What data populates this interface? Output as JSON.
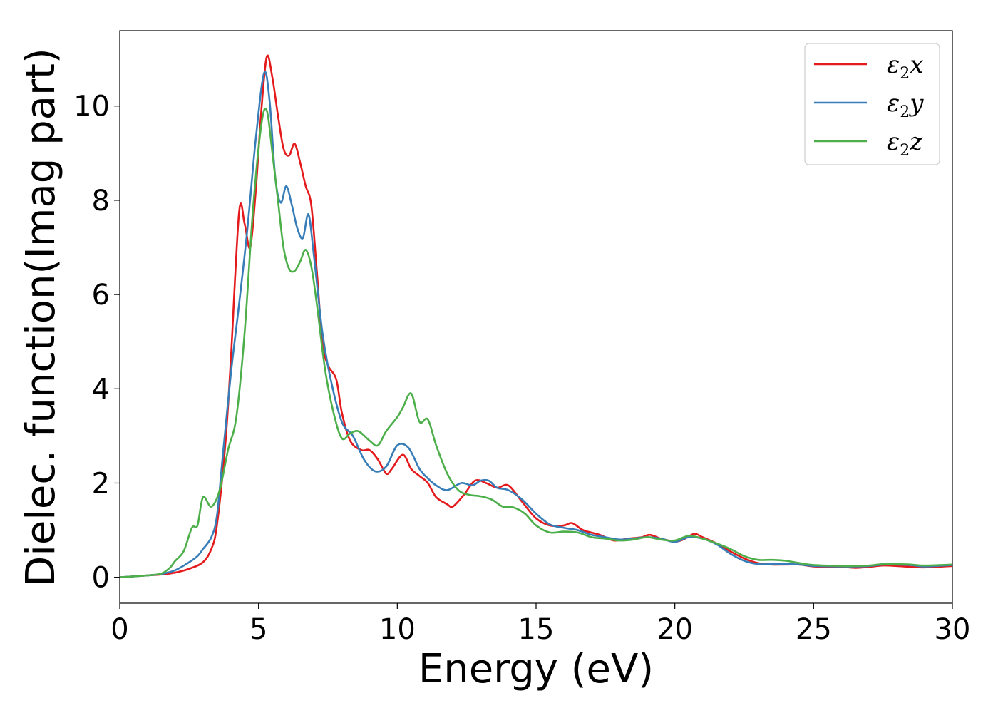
{
  "chart_data": {
    "type": "line",
    "title": "",
    "xlabel": "Energy (eV)",
    "ylabel": "Dielec. function(Imag part)",
    "xlim": [
      0,
      30
    ],
    "ylim": [
      -0.55,
      11.6
    ],
    "xticks": [
      "0",
      "5",
      "10",
      "15",
      "20",
      "25",
      "30"
    ],
    "yticks": [
      "0",
      "2",
      "4",
      "6",
      "8",
      "10"
    ],
    "grid": false,
    "legend_position": "top-right",
    "series": [
      {
        "name": "ε₂x",
        "legend_base": "ε",
        "legend_sub": "2",
        "legend_suffix": "x",
        "color": "#e41a1c",
        "points": [
          [
            0,
            0
          ],
          [
            1,
            0.04
          ],
          [
            1.5,
            0.06
          ],
          [
            2,
            0.1
          ],
          [
            2.5,
            0.18
          ],
          [
            3,
            0.32
          ],
          [
            3.3,
            0.6
          ],
          [
            3.5,
            1.1
          ],
          [
            3.8,
            2.8
          ],
          [
            4.0,
            4.6
          ],
          [
            4.3,
            7.75
          ],
          [
            4.5,
            7.5
          ],
          [
            4.7,
            7.0
          ],
          [
            4.9,
            8.2
          ],
          [
            5.1,
            9.9
          ],
          [
            5.3,
            11.05
          ],
          [
            5.5,
            10.6
          ],
          [
            5.7,
            9.8
          ],
          [
            5.9,
            9.1
          ],
          [
            6.1,
            8.95
          ],
          [
            6.3,
            9.2
          ],
          [
            6.5,
            8.8
          ],
          [
            6.7,
            8.3
          ],
          [
            6.9,
            7.9
          ],
          [
            7.1,
            6.5
          ],
          [
            7.3,
            5.0
          ],
          [
            7.5,
            4.5
          ],
          [
            7.8,
            4.2
          ],
          [
            8.0,
            3.5
          ],
          [
            8.3,
            2.9
          ],
          [
            8.7,
            2.7
          ],
          [
            9.0,
            2.7
          ],
          [
            9.3,
            2.5
          ],
          [
            9.6,
            2.2
          ],
          [
            9.8,
            2.3
          ],
          [
            10.2,
            2.6
          ],
          [
            10.5,
            2.3
          ],
          [
            10.8,
            2.15
          ],
          [
            11.1,
            2.0
          ],
          [
            11.4,
            1.7
          ],
          [
            11.8,
            1.55
          ],
          [
            12.0,
            1.5
          ],
          [
            12.4,
            1.75
          ],
          [
            12.8,
            2.05
          ],
          [
            13.2,
            2.0
          ],
          [
            13.6,
            1.9
          ],
          [
            14.0,
            1.95
          ],
          [
            14.5,
            1.6
          ],
          [
            15.0,
            1.25
          ],
          [
            15.5,
            1.1
          ],
          [
            16.0,
            1.1
          ],
          [
            16.3,
            1.15
          ],
          [
            16.7,
            1.0
          ],
          [
            17.3,
            0.9
          ],
          [
            17.8,
            0.78
          ],
          [
            18.3,
            0.82
          ],
          [
            18.8,
            0.85
          ],
          [
            19.1,
            0.9
          ],
          [
            19.5,
            0.82
          ],
          [
            20.0,
            0.76
          ],
          [
            20.3,
            0.8
          ],
          [
            20.7,
            0.92
          ],
          [
            21.0,
            0.85
          ],
          [
            21.5,
            0.72
          ],
          [
            22.0,
            0.55
          ],
          [
            22.5,
            0.4
          ],
          [
            23.0,
            0.3
          ],
          [
            23.5,
            0.27
          ],
          [
            24.0,
            0.27
          ],
          [
            24.5,
            0.27
          ],
          [
            25.0,
            0.23
          ],
          [
            26.0,
            0.22
          ],
          [
            26.5,
            0.2
          ],
          [
            27.0,
            0.22
          ],
          [
            27.5,
            0.25
          ],
          [
            28.0,
            0.24
          ],
          [
            28.5,
            0.22
          ],
          [
            29.0,
            0.21
          ],
          [
            30.0,
            0.24
          ]
        ]
      },
      {
        "name": "ε₂y",
        "legend_base": "ε",
        "legend_sub": "2",
        "legend_suffix": "y",
        "color": "#377eb8",
        "points": [
          [
            0,
            0
          ],
          [
            1,
            0.04
          ],
          [
            1.5,
            0.07
          ],
          [
            2,
            0.15
          ],
          [
            2.5,
            0.32
          ],
          [
            2.8,
            0.45
          ],
          [
            3.0,
            0.6
          ],
          [
            3.3,
            0.85
          ],
          [
            3.5,
            1.3
          ],
          [
            3.7,
            2.5
          ],
          [
            4.0,
            4.3
          ],
          [
            4.3,
            5.8
          ],
          [
            4.6,
            7.4
          ],
          [
            4.9,
            9.3
          ],
          [
            5.2,
            10.7
          ],
          [
            5.4,
            10.1
          ],
          [
            5.6,
            8.5
          ],
          [
            5.8,
            7.95
          ],
          [
            6.0,
            8.3
          ],
          [
            6.2,
            7.9
          ],
          [
            6.4,
            7.4
          ],
          [
            6.6,
            7.2
          ],
          [
            6.8,
            7.7
          ],
          [
            7.0,
            6.8
          ],
          [
            7.3,
            5.2
          ],
          [
            7.6,
            4.2
          ],
          [
            8.0,
            3.3
          ],
          [
            8.4,
            3.0
          ],
          [
            8.8,
            2.5
          ],
          [
            9.2,
            2.25
          ],
          [
            9.6,
            2.35
          ],
          [
            10.0,
            2.8
          ],
          [
            10.4,
            2.75
          ],
          [
            10.8,
            2.3
          ],
          [
            11.1,
            2.1
          ],
          [
            11.4,
            1.95
          ],
          [
            11.8,
            1.85
          ],
          [
            12.3,
            2.0
          ],
          [
            12.7,
            1.95
          ],
          [
            13.0,
            2.05
          ],
          [
            13.3,
            2.05
          ],
          [
            13.6,
            1.9
          ],
          [
            14.0,
            1.85
          ],
          [
            14.5,
            1.65
          ],
          [
            15.0,
            1.35
          ],
          [
            15.5,
            1.12
          ],
          [
            16.0,
            1.05
          ],
          [
            16.5,
            1.0
          ],
          [
            17.0,
            0.9
          ],
          [
            17.5,
            0.85
          ],
          [
            18.0,
            0.8
          ],
          [
            18.5,
            0.82
          ],
          [
            19.0,
            0.85
          ],
          [
            19.5,
            0.82
          ],
          [
            20.0,
            0.75
          ],
          [
            20.5,
            0.85
          ],
          [
            21.0,
            0.82
          ],
          [
            21.5,
            0.7
          ],
          [
            22.0,
            0.5
          ],
          [
            22.5,
            0.35
          ],
          [
            23.0,
            0.28
          ],
          [
            23.5,
            0.28
          ],
          [
            24.0,
            0.28
          ],
          [
            24.5,
            0.27
          ],
          [
            25.0,
            0.24
          ],
          [
            26.0,
            0.23
          ],
          [
            26.5,
            0.23
          ],
          [
            27.0,
            0.24
          ],
          [
            27.5,
            0.27
          ],
          [
            28.0,
            0.27
          ],
          [
            28.5,
            0.26
          ],
          [
            29.0,
            0.23
          ],
          [
            30.0,
            0.26
          ]
        ]
      },
      {
        "name": "ε₂z",
        "legend_base": "ε",
        "legend_sub": "2",
        "legend_suffix": "z",
        "color": "#4daf4a",
        "points": [
          [
            0,
            0
          ],
          [
            1,
            0.04
          ],
          [
            1.5,
            0.08
          ],
          [
            1.8,
            0.2
          ],
          [
            2.0,
            0.35
          ],
          [
            2.3,
            0.55
          ],
          [
            2.6,
            1.05
          ],
          [
            2.8,
            1.1
          ],
          [
            3.0,
            1.7
          ],
          [
            3.3,
            1.5
          ],
          [
            3.6,
            1.85
          ],
          [
            3.9,
            2.7
          ],
          [
            4.2,
            3.4
          ],
          [
            4.5,
            5.2
          ],
          [
            4.8,
            7.8
          ],
          [
            5.1,
            9.6
          ],
          [
            5.3,
            9.9
          ],
          [
            5.5,
            9.0
          ],
          [
            5.7,
            8.0
          ],
          [
            5.9,
            7.0
          ],
          [
            6.1,
            6.55
          ],
          [
            6.3,
            6.5
          ],
          [
            6.5,
            6.7
          ],
          [
            6.7,
            6.95
          ],
          [
            6.9,
            6.6
          ],
          [
            7.1,
            5.8
          ],
          [
            7.4,
            4.4
          ],
          [
            7.7,
            3.5
          ],
          [
            8.0,
            2.95
          ],
          [
            8.3,
            3.05
          ],
          [
            8.6,
            3.1
          ],
          [
            9.0,
            2.9
          ],
          [
            9.3,
            2.8
          ],
          [
            9.6,
            3.1
          ],
          [
            10.0,
            3.4
          ],
          [
            10.2,
            3.6
          ],
          [
            10.5,
            3.9
          ],
          [
            10.8,
            3.3
          ],
          [
            11.1,
            3.35
          ],
          [
            11.4,
            2.8
          ],
          [
            11.8,
            2.2
          ],
          [
            12.2,
            1.85
          ],
          [
            12.6,
            1.75
          ],
          [
            13.0,
            1.72
          ],
          [
            13.4,
            1.65
          ],
          [
            13.8,
            1.5
          ],
          [
            14.2,
            1.48
          ],
          [
            14.6,
            1.35
          ],
          [
            15.0,
            1.1
          ],
          [
            15.5,
            0.95
          ],
          [
            16.0,
            0.97
          ],
          [
            16.5,
            0.95
          ],
          [
            17.0,
            0.85
          ],
          [
            17.5,
            0.82
          ],
          [
            18.0,
            0.78
          ],
          [
            18.5,
            0.8
          ],
          [
            19.0,
            0.85
          ],
          [
            19.5,
            0.8
          ],
          [
            20.0,
            0.78
          ],
          [
            20.5,
            0.88
          ],
          [
            21.0,
            0.82
          ],
          [
            21.5,
            0.72
          ],
          [
            22.0,
            0.6
          ],
          [
            22.5,
            0.45
          ],
          [
            23.0,
            0.37
          ],
          [
            23.5,
            0.37
          ],
          [
            24.0,
            0.35
          ],
          [
            24.5,
            0.3
          ],
          [
            25.0,
            0.26
          ],
          [
            26.0,
            0.24
          ],
          [
            26.5,
            0.24
          ],
          [
            27.0,
            0.25
          ],
          [
            27.5,
            0.28
          ],
          [
            28.0,
            0.28
          ],
          [
            28.5,
            0.27
          ],
          [
            29.0,
            0.25
          ],
          [
            30.0,
            0.27
          ]
        ]
      }
    ]
  }
}
